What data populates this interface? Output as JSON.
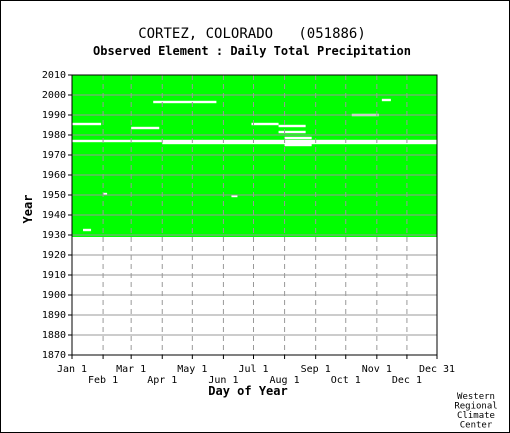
{
  "chart_data": {
    "type": "heatmap",
    "title": "CORTEZ, COLORADO   (051886)",
    "subtitle": "Observed Element : Daily Total Precipitation",
    "xlabel": "Day of Year",
    "ylabel": "Year",
    "xlim": [
      1,
      365
    ],
    "ylim": [
      1870,
      2010
    ],
    "x_tick_top": [
      "Jan 1",
      "Mar 1",
      "May 1",
      "Jul 1",
      "Sep 1",
      "Nov 1",
      "Dec 31"
    ],
    "x_tick_bottom": [
      "Feb 1",
      "Apr 1",
      "Jun 1",
      "Aug 1",
      "Oct 1",
      "Dec 1"
    ],
    "x_tick_top_days": [
      1,
      60,
      121,
      182,
      244,
      305,
      365
    ],
    "x_tick_bottom_days": [
      32,
      91,
      152,
      213,
      274,
      335
    ],
    "y_ticks": [
      1870,
      1880,
      1890,
      1900,
      1910,
      1920,
      1930,
      1940,
      1950,
      1960,
      1970,
      1980,
      1990,
      2000,
      2010
    ],
    "data_coverage": {
      "start_year": 1929,
      "end_year": 2010,
      "color_present": "#00ff00",
      "color_missing": "#ffffff"
    },
    "missing_segments": [
      {
        "year": 1985.5,
        "start_day": 1,
        "end_day": 30
      },
      {
        "year": 1977,
        "start_day": 1,
        "end_day": 365
      },
      {
        "year": 1976,
        "start_day": 91,
        "end_day": 365
      },
      {
        "year": 1975,
        "start_day": 213,
        "end_day": 240
      },
      {
        "year": 1978.5,
        "start_day": 213,
        "end_day": 240
      },
      {
        "year": 1983.5,
        "start_day": 60,
        "end_day": 88
      },
      {
        "year": 1996.5,
        "start_day": 82,
        "end_day": 145
      },
      {
        "year": 1985.5,
        "start_day": 180,
        "end_day": 207
      },
      {
        "year": 1984.5,
        "start_day": 207,
        "end_day": 234
      },
      {
        "year": 1981.5,
        "start_day": 207,
        "end_day": 234
      },
      {
        "year": 1990,
        "start_day": 280,
        "end_day": 307
      },
      {
        "year": 1997.5,
        "start_day": 310,
        "end_day": 319
      },
      {
        "year": 1932.5,
        "start_day": 12,
        "end_day": 20
      },
      {
        "year": 1950.5,
        "start_day": 32,
        "end_day": 36
      },
      {
        "year": 1949.5,
        "start_day": 160,
        "end_day": 166
      }
    ],
    "credit": [
      "Western",
      "Regional",
      "Climate",
      "Center"
    ],
    "grid": true
  }
}
